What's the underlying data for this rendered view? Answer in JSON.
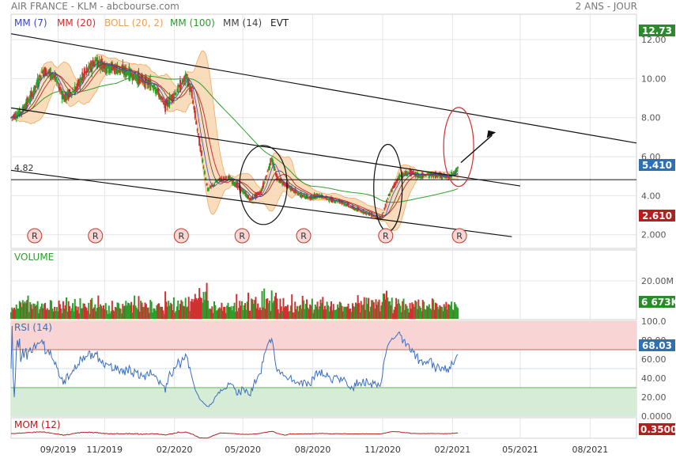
{
  "header": {
    "title": "AIR FRANCE - KLM - abcbourse.com",
    "period": "2 ANS - JOUR"
  },
  "legend": [
    {
      "label": "MM (7)",
      "color": "#3a46c8"
    },
    {
      "label": "MM (20)",
      "color": "#d03030"
    },
    {
      "label": "BOLL (20, 2)",
      "color": "#f0a050"
    },
    {
      "label": "MM (100)",
      "color": "#2aa02a"
    },
    {
      "label": "MM (14)",
      "color": "#444444"
    },
    {
      "label": "EVT",
      "color": "#222222"
    }
  ],
  "colors": {
    "up": "#2aa02a",
    "down": "#d03030",
    "boll_fill": "#f8d9b4",
    "grid": "#e4e4e4",
    "rsi_high": "#f8d4d4",
    "rsi_low": "#d6ecd6",
    "badge_green": "#2b8a2b",
    "badge_blue": "#2f6fb3",
    "badge_red": "#b31f1f"
  },
  "chart_data": [
    {
      "type": "candlestick",
      "title": "AIR FRANCE - KLM - abcbourse.com",
      "ylim": [
        1.3,
        13.3
      ],
      "y_ticks": [
        "12.00",
        "10.00",
        "8.00",
        "6.00",
        "4.00",
        "2.000"
      ],
      "x_ticks": [
        "09/2019",
        "11/2019",
        "02/2020",
        "05/2020",
        "08/2020",
        "11/2020",
        "02/2021",
        "05/2021",
        "08/2021"
      ],
      "price_series": [
        [
          "2019-07-01",
          8.0
        ],
        [
          "2019-07-15",
          8.3
        ],
        [
          "2019-07-29",
          9.2
        ],
        [
          "2019-08-12",
          10.4
        ],
        [
          "2019-08-26",
          10.2
        ],
        [
          "2019-09-09",
          9.0
        ],
        [
          "2019-09-23",
          9.4
        ],
        [
          "2019-10-07",
          10.3
        ],
        [
          "2019-10-21",
          10.9
        ],
        [
          "2019-11-04",
          10.6
        ],
        [
          "2019-11-18",
          10.5
        ],
        [
          "2019-12-02",
          10.3
        ],
        [
          "2019-12-16",
          10.0
        ],
        [
          "2020-01-06",
          9.6
        ],
        [
          "2020-01-20",
          8.6
        ],
        [
          "2020-02-03",
          9.3
        ],
        [
          "2020-02-17",
          10.1
        ],
        [
          "2020-02-24",
          9.2
        ],
        [
          "2020-03-02",
          7.4
        ],
        [
          "2020-03-09",
          5.8
        ],
        [
          "2020-03-16",
          4.3
        ],
        [
          "2020-03-30",
          4.8
        ],
        [
          "2020-04-13",
          4.9
        ],
        [
          "2020-04-27",
          4.4
        ],
        [
          "2020-05-11",
          3.8
        ],
        [
          "2020-05-25",
          4.2
        ],
        [
          "2020-06-08",
          5.9
        ],
        [
          "2020-06-15",
          4.9
        ],
        [
          "2020-06-29",
          4.5
        ],
        [
          "2020-07-13",
          4.1
        ],
        [
          "2020-07-27",
          3.9
        ],
        [
          "2020-08-10",
          4.0
        ],
        [
          "2020-08-24",
          3.8
        ],
        [
          "2020-09-07",
          3.7
        ],
        [
          "2020-09-21",
          3.4
        ],
        [
          "2020-10-05",
          3.2
        ],
        [
          "2020-10-19",
          3.0
        ],
        [
          "2020-10-30",
          2.8
        ],
        [
          "2020-11-09",
          4.0
        ],
        [
          "2020-11-23",
          5.0
        ],
        [
          "2020-12-07",
          5.2
        ],
        [
          "2020-12-21",
          5.0
        ],
        [
          "2021-01-04",
          5.1
        ],
        [
          "2021-01-18",
          5.0
        ],
        [
          "2021-01-29",
          5.0
        ],
        [
          "2021-02-08",
          5.41
        ]
      ],
      "annotations": {
        "last_price": "5.410",
        "level": "4.82",
        "level_value": 4.82,
        "last_close_badge": "12.73",
        "lower_badge": "2.610",
        "event_marker": "R"
      }
    },
    {
      "type": "bar",
      "title": "VOLUME",
      "y_ticks": [
        "20.00M"
      ],
      "last_value": "6 673K"
    },
    {
      "type": "line",
      "title": "RSI (14)",
      "ylim": [
        0,
        100
      ],
      "y_ticks": [
        "100.0",
        "80.00",
        "60.00",
        "40.00",
        "20.00",
        "0.0000"
      ],
      "zones": [
        70,
        30
      ],
      "last_value": "68.03"
    },
    {
      "type": "line",
      "title": "MOM (12)",
      "last_value": "0.3500"
    }
  ]
}
